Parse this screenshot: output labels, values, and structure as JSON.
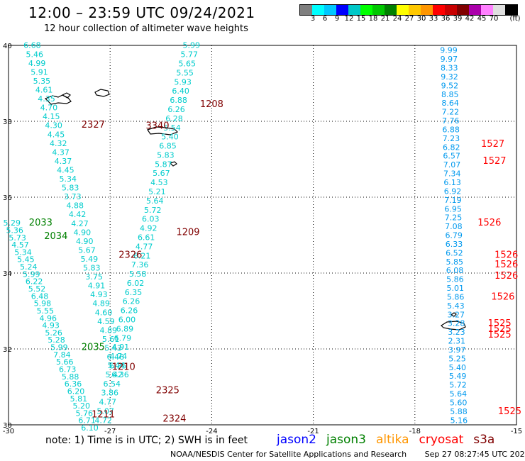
{
  "title": "12:00 – 23:59 UTC 09/24/2021",
  "subtitle": "12 hour collection of altimeter wave heights",
  "legend": {
    "unit": "(ft)",
    "colors": [
      "#7f7f7f",
      "#00ffff",
      "#00c8ff",
      "#0000ff",
      "#00c8c8",
      "#00ff00",
      "#00c800",
      "#008000",
      "#ffff00",
      "#ffc800",
      "#ff9600",
      "#ff0000",
      "#c80000",
      "#800000",
      "#aa00aa",
      "#ff80ff",
      "#e0e0e0",
      "#000000"
    ],
    "labels": [
      "3",
      "6",
      "9",
      "12",
      "15",
      "18",
      "21",
      "24",
      "27",
      "30",
      "33",
      "36",
      "39",
      "42",
      "45",
      "70"
    ]
  },
  "axes": {
    "lon_labels": [
      "-30",
      "-27",
      "-24",
      "-21",
      "-18",
      "-15"
    ],
    "lat_labels": [
      "40",
      "38",
      "36",
      "34",
      "32",
      "30"
    ]
  },
  "tracks": [
    {
      "id": "t1",
      "color": "#00cccc",
      "lon": -29.3,
      "values": [
        "6.68",
        "5.46",
        "4.99",
        "5.91",
        "5.35",
        "4.61",
        "4.35",
        "4.70",
        "4.15",
        "4.30",
        "4.45",
        "4.32",
        "4.37",
        "4.37",
        "4.45",
        "5.34",
        "5.83",
        "3.73",
        "4.88",
        "4.42",
        "4.27",
        "4.90",
        "4.90",
        "5.67",
        "5.49",
        "5.83",
        "3.75",
        "4.91",
        "4.93",
        "4.89",
        "4.60",
        "4.59",
        "4.89",
        "5.61",
        "5.43",
        "6.46",
        "6.35",
        "6.36"
      ]
    },
    {
      "id": "t2",
      "color": "#00cccc",
      "lon": -25.5,
      "values": [
        "5.99",
        "5.77",
        "5.65",
        "5.55",
        "5.93",
        "6.40",
        "6.88",
        "6.26",
        "6.28",
        "5.54",
        "5.40",
        "6.85",
        "5.83",
        "5.87",
        "5.67",
        "4.53",
        "5.21",
        "5.64",
        "5.72",
        "6.03",
        "4.92",
        "6.61",
        "4.77",
        "6.21",
        "7.36",
        "5.58",
        "6.02",
        "6.35",
        "6.26",
        "6.26",
        "6.00",
        "6.89",
        "6.79",
        "4.91",
        "4.74",
        "5.44",
        "5.42",
        "6.54",
        "3.86",
        "4.77",
        "5.07",
        "4.72"
      ]
    },
    {
      "id": "t3",
      "color": "#00cccc",
      "lon": -29.8,
      "values": [
        "5.29",
        "5.36",
        "5.73",
        "4.57",
        "5.34",
        "5.45",
        "5.24",
        "5.99",
        "6.22",
        "5.52",
        "6.48",
        "5.98",
        "5.55",
        "4.96",
        "4.93",
        "5.26",
        "5.28",
        "5.99",
        "7.84",
        "5.66",
        "6.73",
        "5.88",
        "6.36",
        "6.20",
        "5.81",
        "5.20",
        "5.76",
        "6.71",
        "6.10"
      ]
    },
    {
      "id": "t4",
      "color": "#0099ee",
      "lon": -16.5,
      "values": [
        "9.99",
        "9.97",
        "8.33",
        "9.32",
        "9.52",
        "8.85",
        "8.64",
        "7.22",
        "7.76",
        "6.88",
        "7.23",
        "6.82",
        "6.57",
        "7.07",
        "7.34",
        "6.13",
        "6.92",
        "7.19",
        "6.95",
        "7.25",
        "7.08",
        "6.79",
        "6.33",
        "6.52",
        "5.85",
        "6.08",
        "5.86",
        "5.01",
        "5.86",
        "5.43",
        "3.27",
        "3.28",
        "3.23",
        "2.31",
        "3.97",
        "5.25",
        "5.40",
        "5.49",
        "5.72",
        "5.64",
        "5.60",
        "5.88",
        "5.16"
      ]
    }
  ],
  "passes": [
    {
      "label": "1208",
      "color": "#800000",
      "lon": -24.0,
      "lat": 38.37
    },
    {
      "label": "2327",
      "color": "#800000",
      "lon": -27.5,
      "lat": 37.83
    },
    {
      "label": "3340",
      "color": "#800000",
      "lon": -25.6,
      "lat": 37.8
    },
    {
      "label": "1527",
      "color": "#ff0000",
      "lon": -15.7,
      "lat": 37.33
    },
    {
      "label": "1527",
      "color": "#ff0000",
      "lon": -15.65,
      "lat": 36.88
    },
    {
      "label": "2033",
      "color": "#008000",
      "lon": -29.05,
      "lat": 35.25
    },
    {
      "label": "2034",
      "color": "#008000",
      "lon": -28.6,
      "lat": 34.9
    },
    {
      "label": "1526",
      "color": "#ff0000",
      "lon": -15.8,
      "lat": 35.25
    },
    {
      "label": "1209",
      "color": "#800000",
      "lon": -24.7,
      "lat": 35.0
    },
    {
      "label": "2326",
      "color": "#800000",
      "lon": -26.4,
      "lat": 34.4
    },
    {
      "label": "1526",
      "color": "#ff0000",
      "lon": -15.3,
      "lat": 34.4
    },
    {
      "label": "1526",
      "color": "#ff0000",
      "lon": -15.3,
      "lat": 34.15
    },
    {
      "label": "1526",
      "color": "#ff0000",
      "lon": -15.3,
      "lat": 33.85
    },
    {
      "label": "1526",
      "color": "#ff0000",
      "lon": -15.4,
      "lat": 33.3
    },
    {
      "label": "1525",
      "color": "#ff0000",
      "lon": -15.5,
      "lat": 32.6
    },
    {
      "label": "1525",
      "color": "#ff0000",
      "lon": -15.5,
      "lat": 32.45
    },
    {
      "label": "1525",
      "color": "#ff0000",
      "lon": -15.5,
      "lat": 32.3
    },
    {
      "label": "2035",
      "color": "#008000",
      "lon": -27.5,
      "lat": 31.97
    },
    {
      "label": "1210",
      "color": "#800000",
      "lon": -26.6,
      "lat": 31.45
    },
    {
      "label": "2325",
      "color": "#800000",
      "lon": -25.3,
      "lat": 30.83
    },
    {
      "label": "1211",
      "color": "#800000",
      "lon": -27.2,
      "lat": 30.2
    },
    {
      "label": "2324",
      "color": "#800000",
      "lon": -25.1,
      "lat": 30.08
    },
    {
      "label": "1525",
      "color": "#ff0000",
      "lon": -15.2,
      "lat": 30.28
    }
  ],
  "note": "note:  1) Time is in UTC; 2) SWH is in feet",
  "satellites": [
    {
      "name": "jason2",
      "color": "#0000ff"
    },
    {
      "name": "jason3",
      "color": "#008000"
    },
    {
      "name": "altika",
      "color": "#ff9600"
    },
    {
      "name": "cryosat",
      "color": "#ff0000"
    },
    {
      "name": "s3a",
      "color": "#800000"
    }
  ],
  "footer": {
    "credit": "NOAA/NESDIS Center for Satellite Applications and Research",
    "timestamp": "Sep 27 08:27:45 UTC 2021"
  }
}
